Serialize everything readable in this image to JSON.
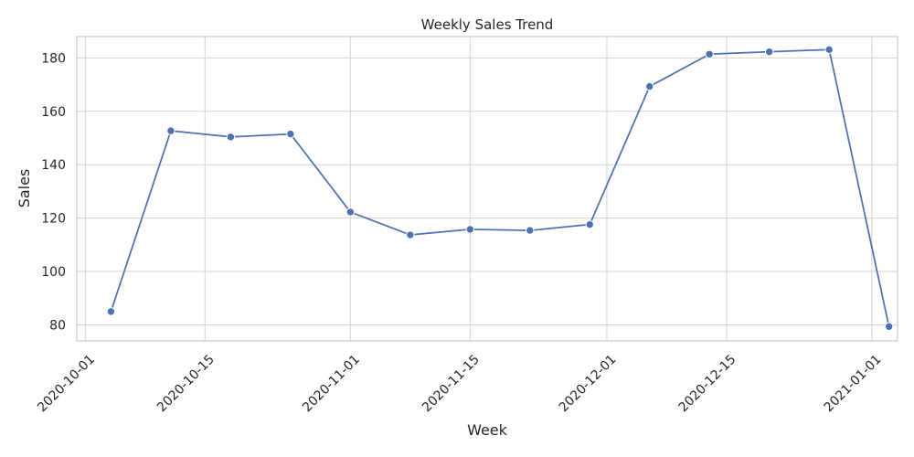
{
  "chart_data": {
    "type": "line",
    "title": "Weekly Sales Trend",
    "xlabel": "Week",
    "ylabel": "Sales",
    "x_type": "date",
    "xlim": [
      "2020-09-30",
      "2021-01-04"
    ],
    "ylim": [
      74,
      188
    ],
    "x_ticks": [
      "2020-10-01",
      "2020-10-15",
      "2020-11-01",
      "2020-11-15",
      "2020-12-01",
      "2020-12-15",
      "2021-01-01"
    ],
    "y_ticks": [
      80,
      100,
      120,
      140,
      160,
      180
    ],
    "grid": true,
    "marker": "circle",
    "color": "#4c72b0",
    "x": [
      "2020-10-04",
      "2020-10-11",
      "2020-10-18",
      "2020-10-25",
      "2020-11-01",
      "2020-11-08",
      "2020-11-15",
      "2020-11-22",
      "2020-11-29",
      "2020-12-06",
      "2020-12-13",
      "2020-12-20",
      "2020-12-27",
      "2021-01-03"
    ],
    "values": [
      85,
      152.7,
      150.4,
      151.5,
      122.3,
      113.7,
      115.8,
      115.4,
      117.6,
      169.3,
      181.4,
      182.3,
      183.1,
      79.4
    ]
  }
}
